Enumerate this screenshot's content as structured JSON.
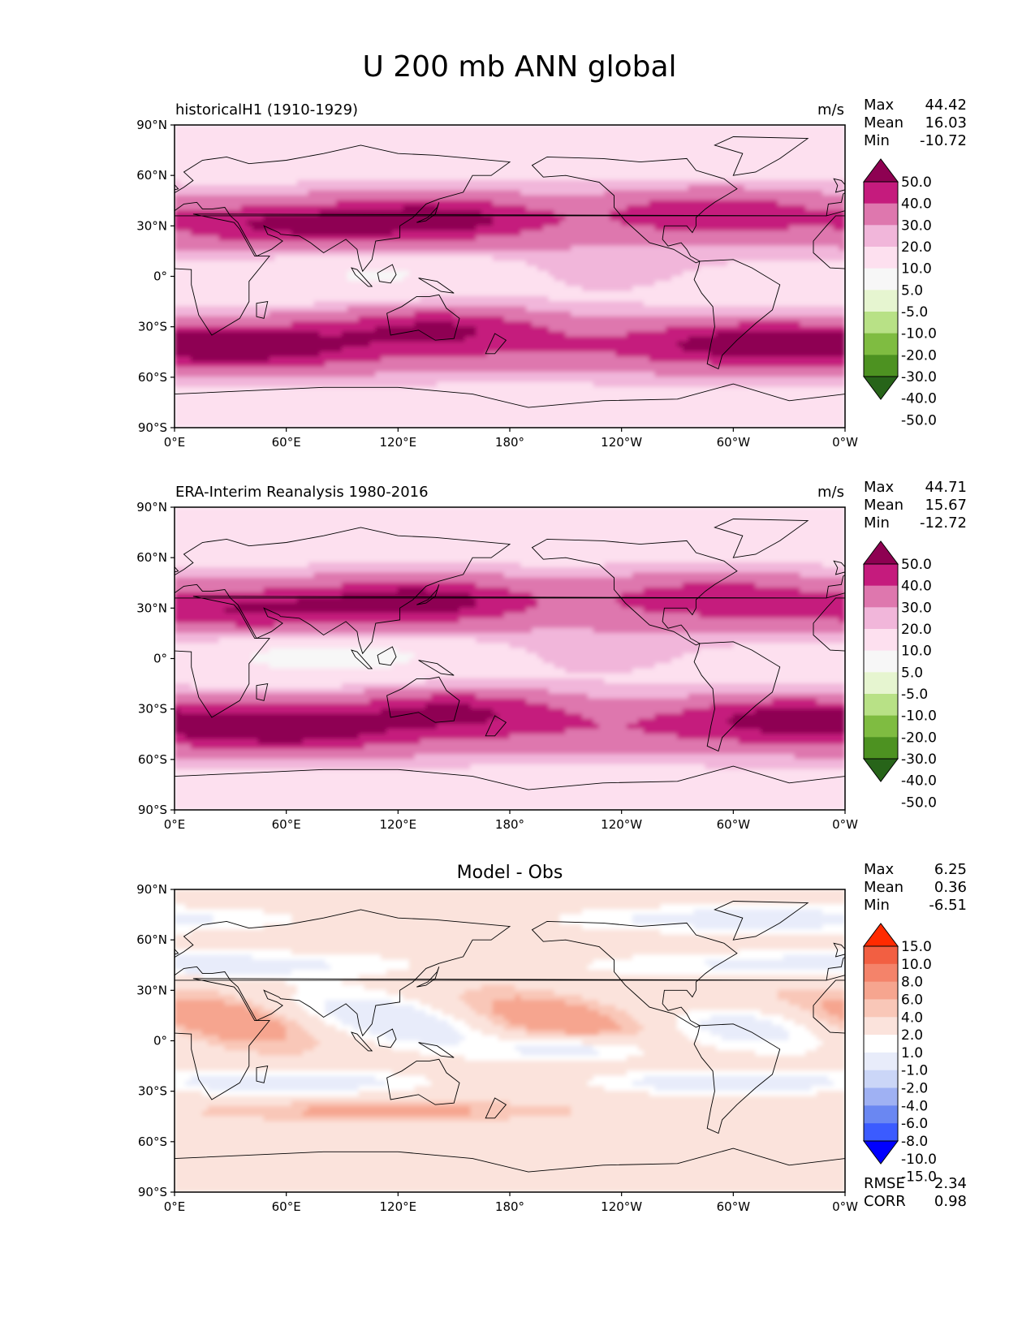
{
  "title": "U 200 mb ANN global",
  "x_ticks": [
    "0°E",
    "60°E",
    "120°E",
    "180°",
    "120°W",
    "60°W",
    "0°W"
  ],
  "y_ticks": [
    "90°N",
    "60°N",
    "30°N",
    "0°",
    "30°S",
    "60°S",
    "90°S"
  ],
  "stat_labels": {
    "max": "Max",
    "mean": "Mean",
    "min": "Min",
    "rmse": "RMSE",
    "corr": "CORR"
  },
  "colors": {
    "pink_scale": [
      "#276419",
      "#4d9221",
      "#7fbc41",
      "#b8e186",
      "#e6f5d0",
      "#f7f7f7",
      "#fde0ef",
      "#f1b6da",
      "#de77ae",
      "#c51b7d",
      "#8e0152"
    ],
    "diff_scale": [
      "#0000ff",
      "#3b5bff",
      "#6a87f2",
      "#9fb1f3",
      "#cbd6f7",
      "#e8ecfa",
      "#ffffff",
      "#fbe3dc",
      "#f9c7b8",
      "#f6a58f",
      "#f4836a",
      "#f25f42",
      "#ff2a00"
    ],
    "land_line": "#000000"
  },
  "chart_data": [
    {
      "type": "contour-map",
      "name": "test",
      "left_title": "historicalH1 (1910-1929)",
      "right_title": "m/s",
      "stats": {
        "max": "44.42",
        "mean": "16.03",
        "min": "-10.72"
      },
      "levels": [
        "50.0",
        "40.0",
        "30.0",
        "20.0",
        "10.0",
        "5.0",
        "-5.0",
        "-10.0",
        "-20.0",
        "-30.0",
        "-40.0",
        "-50.0"
      ],
      "xlim": [
        0,
        360
      ],
      "ylim": [
        -90,
        90
      ],
      "jets": [
        {
          "lon": 140,
          "lat": 34,
          "value": 38
        },
        {
          "lon": 60,
          "lat": 30,
          "value": 30
        },
        {
          "lon": 290,
          "lat": 38,
          "value": 28
        },
        {
          "lon": 40,
          "lat": -42,
          "value": 34
        },
        {
          "lon": 140,
          "lat": -30,
          "value": 32
        },
        {
          "lon": 310,
          "lat": -40,
          "value": 32
        }
      ],
      "equatorial_min": {
        "lon": 110,
        "lat": 0,
        "value": -8
      }
    },
    {
      "type": "contour-map",
      "name": "reference",
      "left_title": "ERA-Interim Reanalysis 1980-2016",
      "right_title": "m/s",
      "stats": {
        "max": "44.71",
        "mean": "15.67",
        "min": "-12.72"
      },
      "levels": [
        "50.0",
        "40.0",
        "30.0",
        "20.0",
        "10.0",
        "5.0",
        "-5.0",
        "-10.0",
        "-20.0",
        "-30.0",
        "-40.0",
        "-50.0"
      ],
      "xlim": [
        0,
        360
      ],
      "ylim": [
        -90,
        90
      ],
      "jets": [
        {
          "lon": 130,
          "lat": 34,
          "value": 40
        },
        {
          "lon": 40,
          "lat": 28,
          "value": 28
        },
        {
          "lon": 290,
          "lat": 36,
          "value": 26
        },
        {
          "lon": 60,
          "lat": -42,
          "value": 34
        },
        {
          "lon": 150,
          "lat": -30,
          "value": 32
        },
        {
          "lon": 330,
          "lat": -35,
          "value": 32
        }
      ],
      "equatorial_min": {
        "lon": 85,
        "lat": 0,
        "value": -12
      }
    },
    {
      "type": "contour-map",
      "name": "diff",
      "center_title": "Model - Obs",
      "stats": {
        "max": "6.25",
        "mean": "0.36",
        "min": "-6.51"
      },
      "levels": [
        "15.0",
        "10.0",
        "8.0",
        "6.0",
        "4.0",
        "2.0",
        "1.0",
        "-1.0",
        "-2.0",
        "-4.0",
        "-6.0",
        "-8.0",
        "-10.0",
        "-15.0"
      ],
      "metrics": {
        "rmse": "2.34",
        "corr": "0.98"
      },
      "xlim": [
        0,
        360
      ],
      "ylim": [
        -90,
        90
      ]
    }
  ]
}
